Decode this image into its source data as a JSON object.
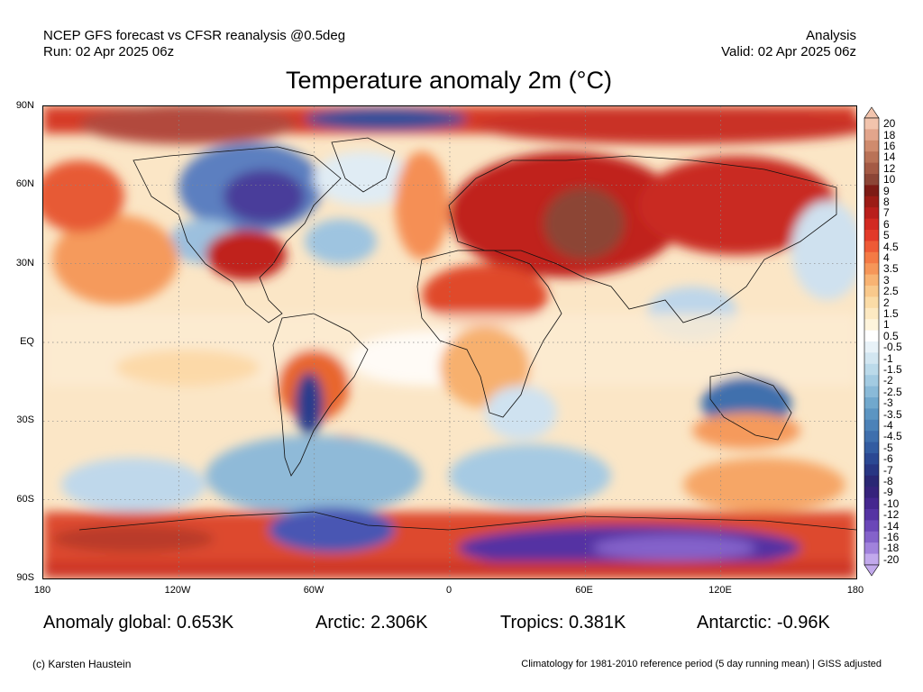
{
  "header": {
    "model_line": "NCEP GFS forecast vs CFSR reanalysis @0.5deg",
    "run_line": "Run: 02 Apr 2025 06z",
    "analysis_label": "Analysis",
    "valid_line": "Valid: 02 Apr 2025 06z"
  },
  "title": "Temperature anomaly 2m (°C)",
  "map": {
    "lat_labels": [
      "90N",
      "60N",
      "30N",
      "EQ",
      "30S",
      "60S",
      "90S"
    ],
    "lon_labels": [
      "180",
      "120W",
      "60W",
      "0",
      "60E",
      "120E",
      "180"
    ]
  },
  "colorbar": {
    "labels": [
      "20",
      "18",
      "16",
      "14",
      "12",
      "10",
      "9",
      "8",
      "7",
      "6",
      "5",
      "4.5",
      "4",
      "3.5",
      "3",
      "2.5",
      "2",
      "1.5",
      "1",
      "0.5",
      "-0.5",
      "-1",
      "-1.5",
      "-2",
      "-2.5",
      "-3",
      "-3.5",
      "-4",
      "-4.5",
      "-5",
      "-6",
      "-7",
      "-8",
      "-9",
      "-10",
      "-12",
      "-14",
      "-16",
      "-18",
      "-20"
    ],
    "colors": [
      "#f2c4ad",
      "#e2a58c",
      "#cf8b6e",
      "#b97257",
      "#a45a45",
      "#8c4536",
      "#7d1b15",
      "#9c1c16",
      "#b91f1c",
      "#d22a22",
      "#e23a29",
      "#ee5a36",
      "#f47a45",
      "#f69659",
      "#f8b373",
      "#f9c98c",
      "#fbdca7",
      "#fde9c2",
      "#fef4dc",
      "#ffffff",
      "#e8f2f8",
      "#d2e6f1",
      "#bbdaea",
      "#a3cbe2",
      "#8abad8",
      "#71a8cd",
      "#5c95c2",
      "#4c82b8",
      "#3f6fad",
      "#335ca1",
      "#2b4893",
      "#283683",
      "#2a2774",
      "#36237c",
      "#45278f",
      "#5533a3",
      "#6b47b8",
      "#8462ca",
      "#a182dc",
      "#c2a9ec"
    ]
  },
  "stats": {
    "global": "Anomaly global: 0.653K",
    "arctic": "Arctic: 2.306K",
    "tropics": "Tropics: 0.381K",
    "antarctic": "Antarctic: -0.96K"
  },
  "footer": {
    "credit": "(c) Karsten Haustein",
    "climatology": "Climatology for 1981-2010 reference period (5 day running mean) | GISS adjusted"
  }
}
